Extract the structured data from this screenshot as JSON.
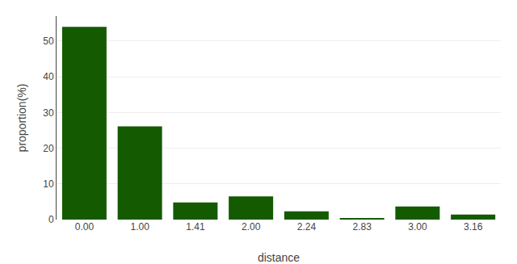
{
  "chart_data": {
    "type": "bar",
    "categories": [
      "0.00",
      "1.00",
      "1.41",
      "2.00",
      "2.24",
      "2.83",
      "3.00",
      "3.16"
    ],
    "values": [
      54.0,
      26.1,
      4.8,
      6.5,
      2.3,
      0.4,
      3.7,
      1.4
    ],
    "color": "#145a00",
    "xlabel": "distance",
    "ylabel": "proportion(%)",
    "ylim": [
      0,
      57
    ],
    "yticks": [
      0,
      10,
      20,
      30,
      40,
      50
    ],
    "grid": true
  }
}
